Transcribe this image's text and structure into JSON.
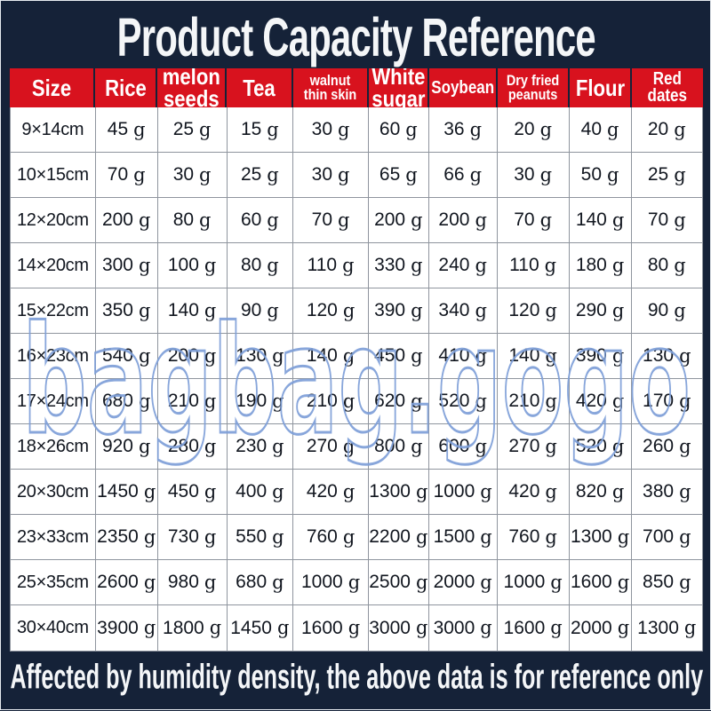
{
  "title": "Product Capacity Reference",
  "watermark": "bagbag.gogo",
  "footer": "Affected by humidity density, the above data is for reference only",
  "colors": {
    "background_navy": "#152238",
    "header_red": "#d8121e",
    "watermark_blue": "#7e9fd8",
    "cell_border_gray": "#8f959e",
    "text_white": "#f4f6f8",
    "cell_text": "#11161f"
  },
  "chart_data": {
    "type": "table",
    "title": "Product Capacity Reference",
    "unit": "g",
    "columns": [
      "Size",
      "Rice",
      "melon seeds",
      "Tea",
      "walnut thin skin",
      "White sugar",
      "Soybean",
      "Dry fried peanuts",
      "Flour",
      "Red dates"
    ],
    "rows": [
      {
        "size": "9×14cm",
        "values": [
          45,
          25,
          15,
          30,
          60,
          36,
          20,
          40,
          20
        ]
      },
      {
        "size": "10×15cm",
        "values": [
          70,
          30,
          25,
          30,
          65,
          66,
          30,
          50,
          25
        ]
      },
      {
        "size": "12×20cm",
        "values": [
          200,
          80,
          60,
          70,
          200,
          200,
          70,
          140,
          70
        ]
      },
      {
        "size": "14×20cm",
        "values": [
          300,
          100,
          80,
          110,
          330,
          240,
          110,
          180,
          80
        ]
      },
      {
        "size": "15×22cm",
        "values": [
          350,
          140,
          90,
          120,
          390,
          340,
          120,
          290,
          90
        ]
      },
      {
        "size": "16×23cm",
        "values": [
          540,
          200,
          130,
          140,
          450,
          410,
          140,
          390,
          130
        ]
      },
      {
        "size": "17×24cm",
        "values": [
          680,
          210,
          190,
          210,
          620,
          520,
          210,
          420,
          170
        ]
      },
      {
        "size": "18×26cm",
        "values": [
          920,
          280,
          230,
          270,
          800,
          600,
          270,
          520,
          260
        ]
      },
      {
        "size": "20×30cm",
        "values": [
          1450,
          450,
          400,
          420,
          1300,
          1000,
          420,
          820,
          380
        ]
      },
      {
        "size": "23×33cm",
        "values": [
          2350,
          730,
          550,
          760,
          2200,
          1500,
          760,
          1300,
          700
        ]
      },
      {
        "size": "25×35cm",
        "values": [
          2600,
          980,
          680,
          1000,
          2500,
          2000,
          1000,
          1600,
          850
        ]
      },
      {
        "size": "30×40cm",
        "values": [
          3900,
          1800,
          1450,
          1600,
          3000,
          3000,
          1600,
          2000,
          1300
        ]
      }
    ]
  }
}
